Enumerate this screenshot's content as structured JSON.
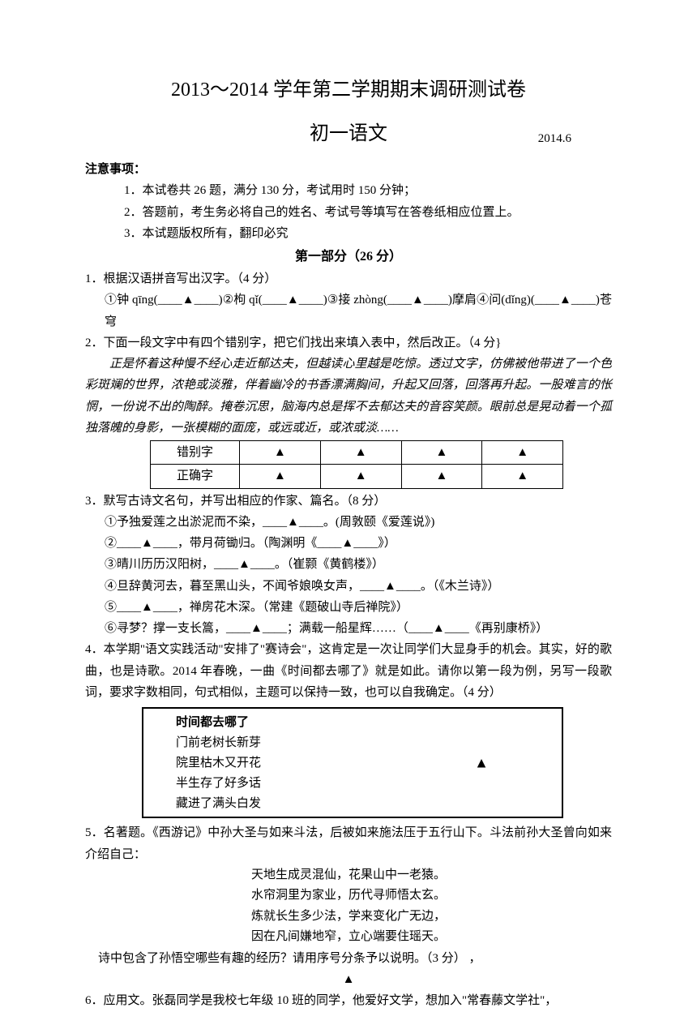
{
  "title": "2013～2014 学年第二学期期末调研测试卷",
  "subtitle": "初一语文",
  "date": "2014.6",
  "notice_label": "注意事项：",
  "notices": [
    "1．本试卷共 26 题，满分 130 分，考试用时 150 分钟；",
    "2．答题前，考生务必将自己的姓名、考试号等填写在答卷纸相应位置上。",
    "3．本试题版权所有，翻印必究"
  ],
  "section1_title": "第一部分（26 分）",
  "q1": {
    "stem": "1．根据汉语拼音写出汉字。（4 分）",
    "line": "①钟 qīng(____▲____)②枸 qǐ(____▲____)③接 zhòng(____▲____)摩肩④问(dǐng)(____▲____)苍穹"
  },
  "q2": {
    "stem": "2．下面一段文字中有四个错别字，把它们找出来填入表中，然后改正。（4 分}",
    "para": "正是怀着这种慢不经心走近郁达夫，但越读心里越是吃惊。透过文字，仿佛被他带进了一个色彩斑斓的世界，浓艳或淡雅，伴着幽冷的书香漂满胸间，升起又回落，回落再升起。一股难言的怅惘，一份说不出的陶醉。掩卷沉思，脑海内总是挥不去郁达夫的音容笑颜。眼前总是晃动着一个孤独落魄的身影，一张模糊的面庞，或远或近，或浓或淡……",
    "table": {
      "row1_label": "错别字",
      "row2_label": "正确字",
      "mark": "▲"
    }
  },
  "q3": {
    "stem": "3．默写古诗文名句，并写出相应的作家、篇名。（8 分）",
    "items": [
      "①予独爱莲之出淤泥而不染，____▲____。(周敦颐《爱莲说》)",
      "②____▲____，带月荷锄归。（陶渊明《____▲____》）",
      "③晴川历历汉阳树，____▲____。（崔颢《黄鹤楼》）",
      "④旦辞黄河去，暮至黑山头，不闻爷娘唤女声，____▲____。（《木兰诗》）",
      "⑤____▲____，禅房花木深。（常建《题破山寺后禅院》）",
      "⑥寻梦？撑一支长篙，____▲____；满载一船星辉……（____▲____《再别康桥》）"
    ]
  },
  "q4": {
    "stem": "4．本学期\"语文实践活动\"安排了\"赛诗会\"，这肯定是一次让同学们大显身手的机会。其实，好的歌曲，也是诗歌。2014 年春晚，一曲《时间都去哪了》就是如此。请你以第一段为例，另写一段歌词，要求字数相同，句式相似，主题可以保持一致，也可以自我确定。（4 分）",
    "lyrics_title": "时间都去哪了",
    "lyrics": [
      "门前老树长新芽",
      "院里枯木又开花",
      "半生存了好多话",
      "藏进了满头白发"
    ],
    "triangle": "▲"
  },
  "q5": {
    "stem": "5．名著题。《西游记》中孙大圣与如来斗法，后被如来施法压于五行山下。斗法前孙大圣曾向如来介绍自己：",
    "poems": [
      "天地生成灵混仙，花果山中一老猿。",
      "水帘洞里为家业，历代寻师悟太玄。",
      "炼就长生多少法，学来变化广无边，",
      "因在凡间嫌地窄，立心端要住瑶天。"
    ],
    "tail": "诗中包含了孙悟空哪些有趣的经历？请用序号分条予以说明。（3 分）    ，",
    "mark": "▲"
  },
  "q6": {
    "stem": "6．应用文。张磊同学是我校七年级 10 班的同学，他爱好文学，想加入\"常春藤文学社\"，"
  }
}
